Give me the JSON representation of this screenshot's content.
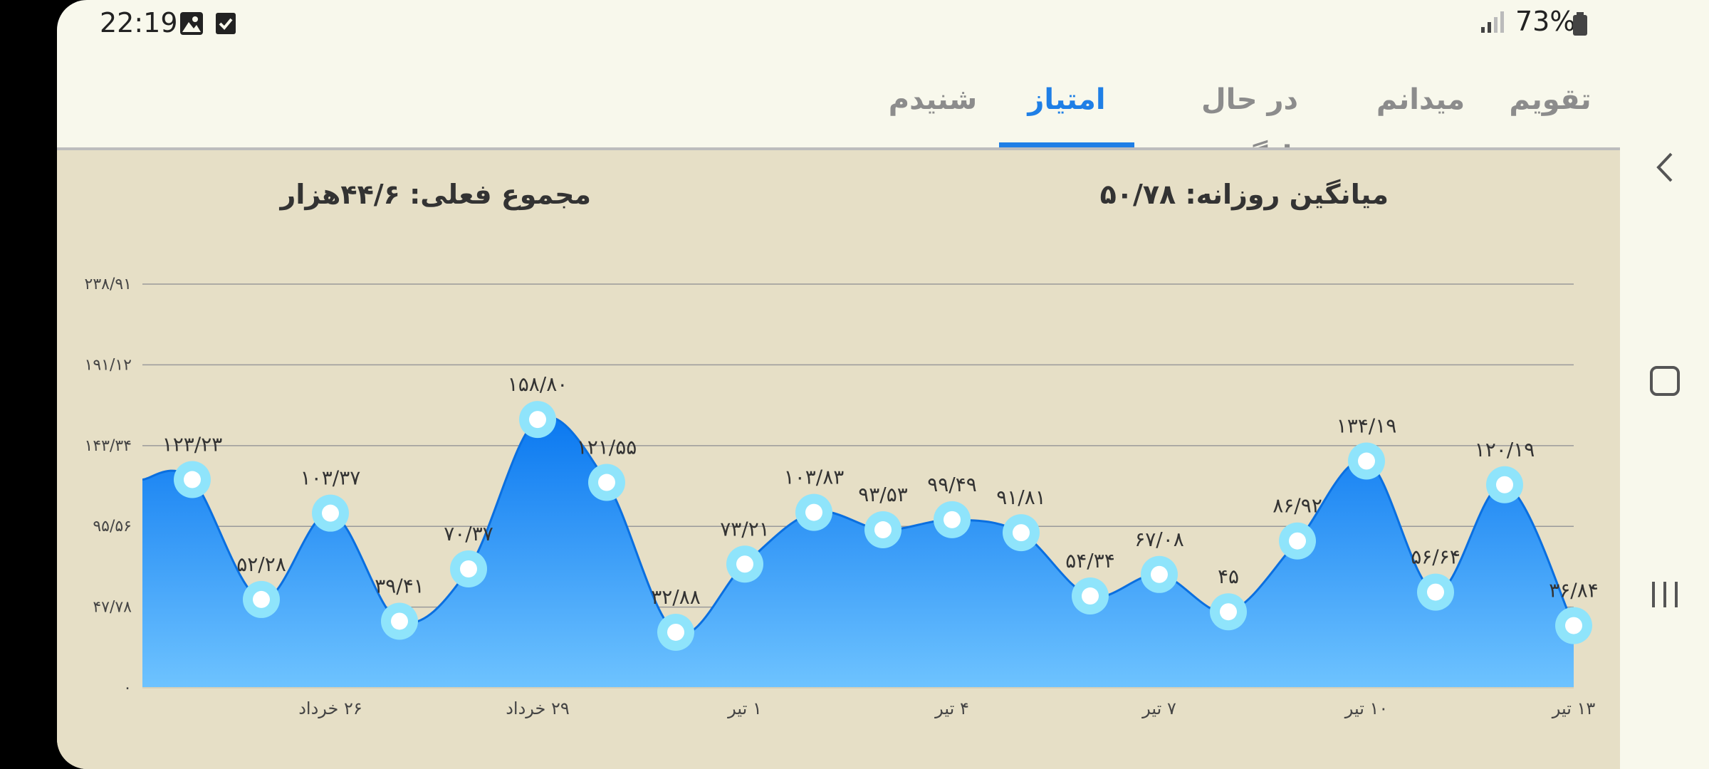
{
  "status": {
    "time": "22:19",
    "battery": "73%",
    "icons": [
      "gallery-icon",
      "checkbox-icon",
      "signal-icon",
      "battery-icon"
    ]
  },
  "tabs": [
    {
      "label": "تقویم",
      "active": false
    },
    {
      "label": "میدانم",
      "active": false
    },
    {
      "label": "در حال یادگیری",
      "active": false
    },
    {
      "label": "امتیاز",
      "active": true
    },
    {
      "label": "شنیدم",
      "active": false
    }
  ],
  "summary": {
    "daily_average": "میانگین روزانه: ۵۰/۷۸",
    "total": "مجموع فعلی: ۴۴/۶هزار"
  },
  "nav": {
    "icons": [
      "back-chevron-icon",
      "home-square-icon",
      "recents-icon"
    ]
  },
  "colors": {
    "accent": "#1f7fe6",
    "fill_top": "#0a78f0",
    "fill_bottom": "#6ec3ff",
    "marker": "#8fe4fb"
  },
  "chart_data": {
    "type": "area",
    "y_ticks": [
      0,
      47.78,
      95.56,
      143.34,
      191.12,
      238.91
    ],
    "y_tick_labels": [
      "۰",
      "۴۷/۷۸",
      "۹۵/۵۶",
      "۱۴۳/۳۴",
      "۱۹۱/۱۲",
      "۲۳۸/۹۱"
    ],
    "ylim": [
      0,
      238.91
    ],
    "grid": true,
    "x_tick_labels": [
      {
        "index": 2,
        "label": "۲۶ خرداد"
      },
      {
        "index": 5,
        "label": "۲۹ خرداد"
      },
      {
        "index": 8,
        "label": "۱ تیر"
      },
      {
        "index": 11,
        "label": "۴ تیر"
      },
      {
        "index": 14,
        "label": "۷ تیر"
      },
      {
        "index": 17,
        "label": "۱۰ تیر"
      },
      {
        "index": 20,
        "label": "۱۳ تیر"
      }
    ],
    "start_value": 123.23,
    "points": [
      {
        "value": 123.23,
        "label": "۱۲۳/۲۳"
      },
      {
        "value": 52.28,
        "label": "۵۲/۲۸"
      },
      {
        "value": 103.37,
        "label": "۱۰۳/۳۷"
      },
      {
        "value": 39.41,
        "label": "۳۹/۴۱"
      },
      {
        "value": 70.37,
        "label": "۷۰/۳۷"
      },
      {
        "value": 158.8,
        "label": "۱۵۸/۸۰"
      },
      {
        "value": 121.55,
        "label": "۱۲۱/۵۵"
      },
      {
        "value": 32.88,
        "label": "۳۲/۸۸"
      },
      {
        "value": 73.21,
        "label": "۷۳/۲۱"
      },
      {
        "value": 103.83,
        "label": "۱۰۳/۸۳"
      },
      {
        "value": 93.53,
        "label": "۹۳/۵۳"
      },
      {
        "value": 99.49,
        "label": "۹۹/۴۹"
      },
      {
        "value": 91.81,
        "label": "۹۱/۸۱"
      },
      {
        "value": 54.34,
        "label": "۵۴/۳۴"
      },
      {
        "value": 67.08,
        "label": "۶۷/۰۸"
      },
      {
        "value": 45,
        "label": "۴۵"
      },
      {
        "value": 86.92,
        "label": "۸۶/۹۲"
      },
      {
        "value": 134.19,
        "label": "۱۳۴/۱۹"
      },
      {
        "value": 56.64,
        "label": "۵۶/۶۴"
      },
      {
        "value": 120.19,
        "label": "۱۲۰/۱۹"
      },
      {
        "value": 36.84,
        "label": "۳۶/۸۴"
      }
    ]
  }
}
